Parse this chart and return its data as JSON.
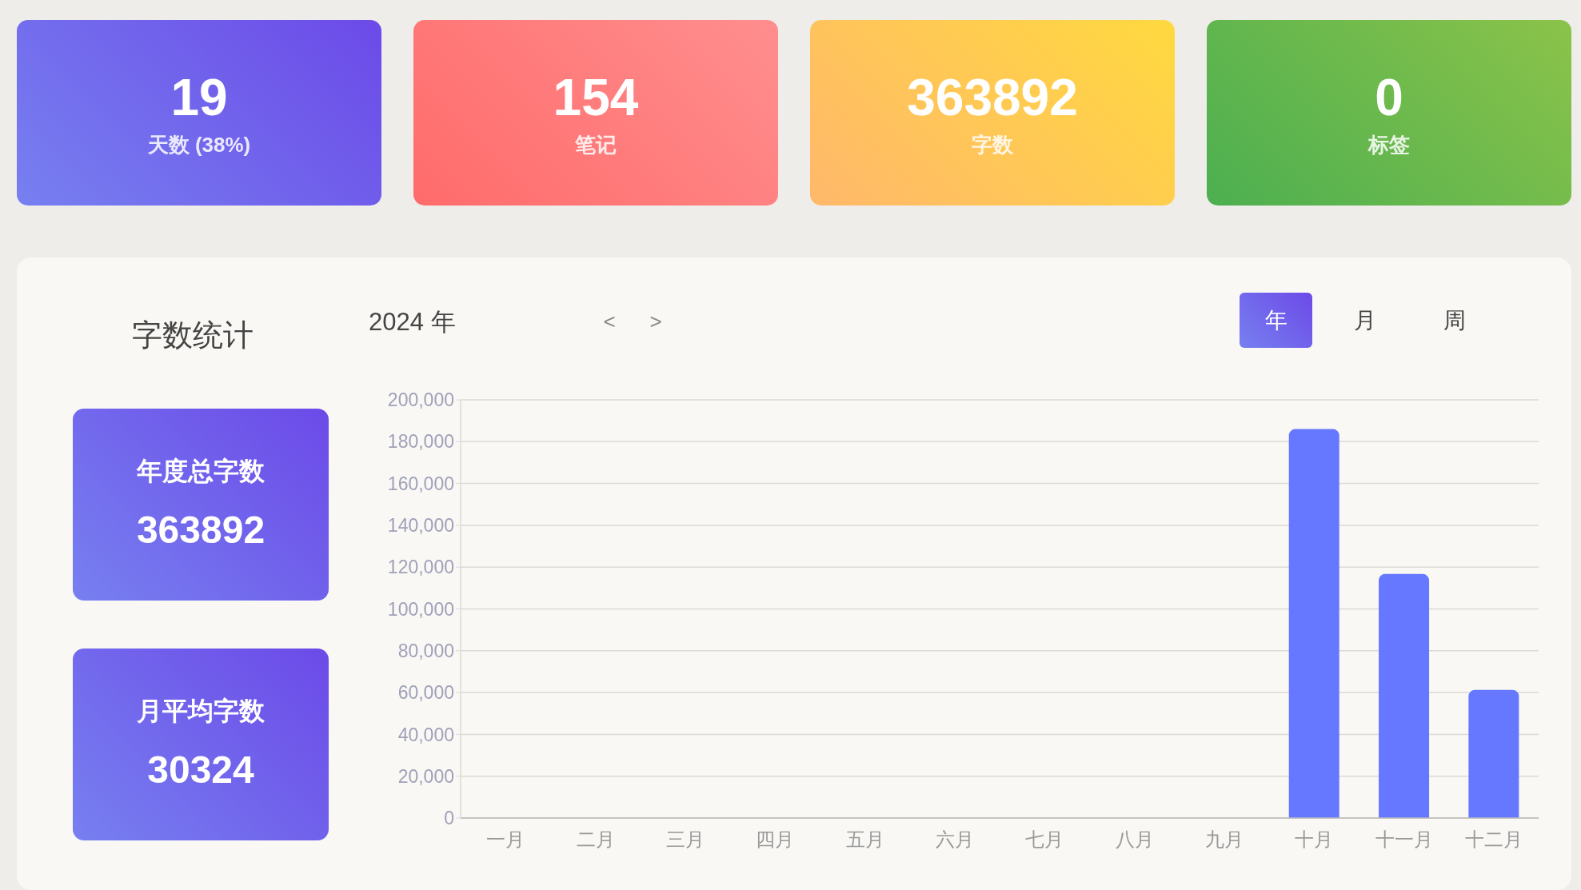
{
  "chart_data": [
    {
      "type": "other",
      "title": "19",
      "subtitle": "天数 (38%)"
    },
    {
      "type": "other",
      "title": "154",
      "subtitle": "笔记"
    },
    {
      "type": "other",
      "title": "363892",
      "subtitle": "字数"
    },
    {
      "type": "other",
      "title": "0",
      "subtitle": "标签"
    },
    {
      "type": "other",
      "title": "年度总字数",
      "subtitle": "363892"
    },
    {
      "type": "other",
      "title": "月平均字数",
      "subtitle": "30324"
    },
    {
      "type": "bar",
      "title": "字数统计",
      "subtitle": "2024 年",
      "annotations": [
        "<",
        ">",
        "年",
        "月",
        "周"
      ],
      "categories": [
        "一月",
        "二月",
        "三月",
        "四月",
        "五月",
        "六月",
        "七月",
        "八月",
        "九月",
        "十月",
        "十一月",
        "十二月"
      ],
      "values": [
        0,
        0,
        0,
        0,
        0,
        0,
        0,
        0,
        0,
        186000,
        116700,
        61300
      ],
      "color": "#6578ff",
      "ylim": [
        0,
        200000
      ],
      "yticks": [
        {
          "value": 0,
          "label": "0"
        },
        {
          "value": 20000,
          "label": "20,000"
        },
        {
          "value": 40000,
          "label": "40,000"
        },
        {
          "value": 60000,
          "label": "60,000"
        },
        {
          "value": 80000,
          "label": "80,000"
        },
        {
          "value": 100000,
          "label": "100,000"
        },
        {
          "value": 120000,
          "label": "120,000"
        },
        {
          "value": 140000,
          "label": "140,000"
        },
        {
          "value": 160000,
          "label": "160,000"
        },
        {
          "value": 180000,
          "label": "180,000"
        },
        {
          "value": 200000,
          "label": "200,000"
        }
      ],
      "grid": "y"
    }
  ]
}
